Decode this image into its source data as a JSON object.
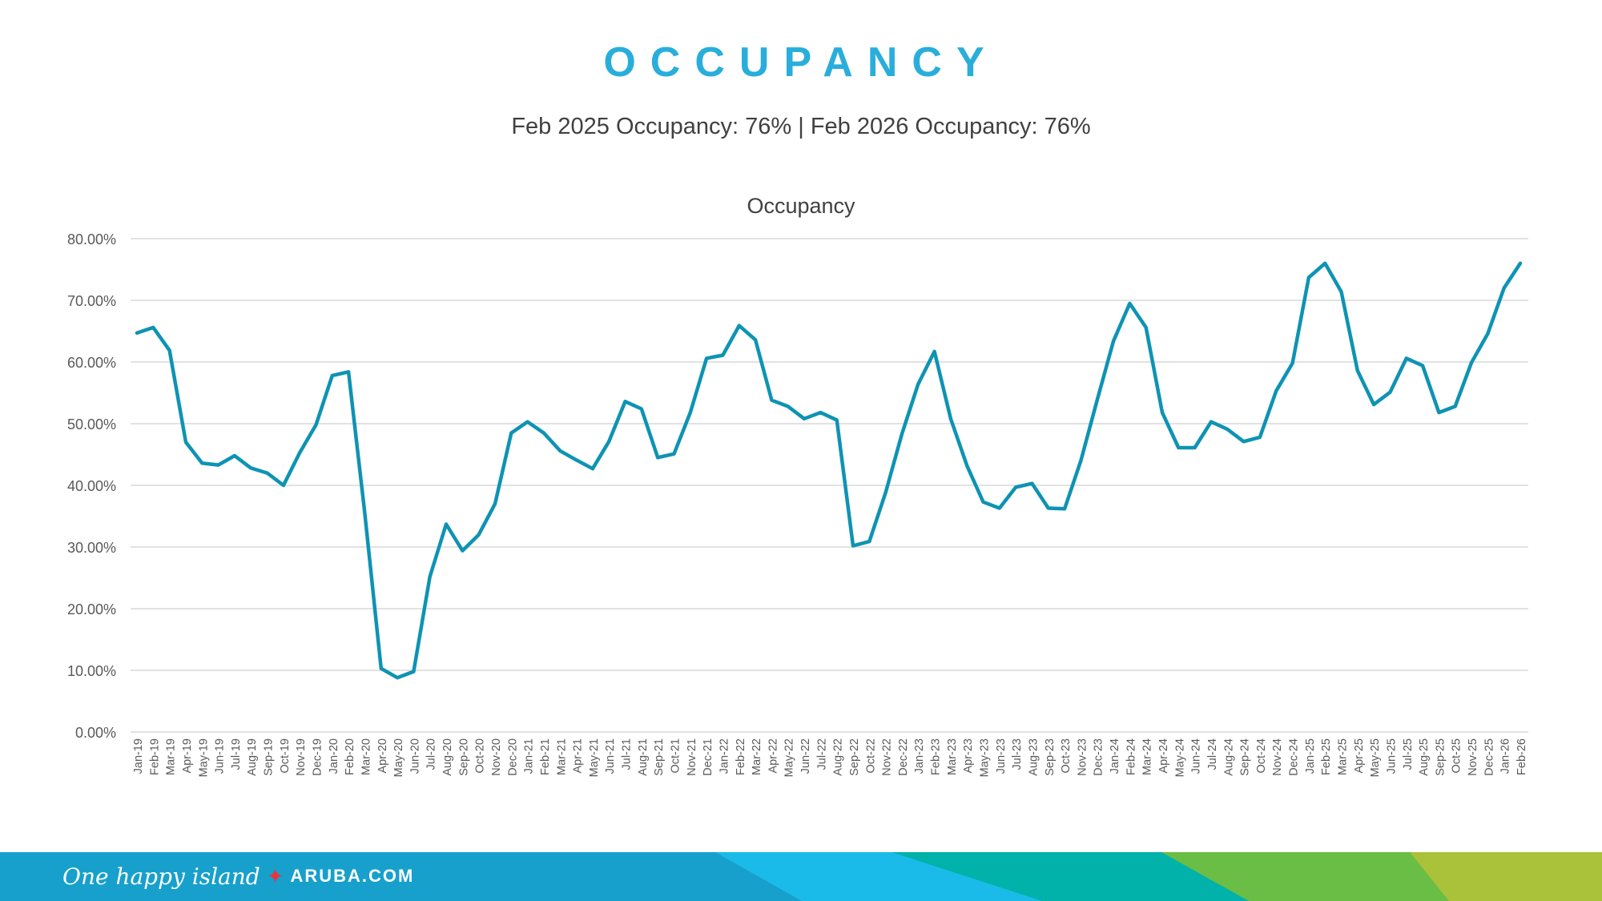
{
  "header": {
    "title": "OCCUPANCY",
    "subtitle": "Feb 2025 Occupancy: 76% | Feb 2026 Occupancy: 76%"
  },
  "footer": {
    "logo_script": "One happy island",
    "logo_site": "ARUBA.COM",
    "colors": [
      "#17a0cc",
      "#1abbe9",
      "#00b2aa",
      "#6abd45",
      "#a9c23a"
    ]
  },
  "chart_data": {
    "type": "line",
    "title": "Occupancy",
    "xlabel": "",
    "ylabel": "",
    "ylim": [
      0,
      80
    ],
    "yticks": [
      "0.00%",
      "10.00%",
      "20.00%",
      "30.00%",
      "40.00%",
      "50.00%",
      "60.00%",
      "70.00%",
      "80.00%"
    ],
    "grid": true,
    "line_color": "#0e93b3",
    "categories": [
      "Jan-19",
      "Feb-19",
      "Mar-19",
      "Apr-19",
      "May-19",
      "Jun-19",
      "Jul-19",
      "Aug-19",
      "Sep-19",
      "Oct-19",
      "Nov-19",
      "Dec-19",
      "Jan-20",
      "Feb-20",
      "Mar-20",
      "Apr-20",
      "May-20",
      "Jun-20",
      "Jul-20",
      "Aug-20",
      "Sep-20",
      "Oct-20",
      "Nov-20",
      "Dec-20",
      "Jan-21",
      "Feb-21",
      "Mar-21",
      "Apr-21",
      "May-21",
      "Jun-21",
      "Jul-21",
      "Aug-21",
      "Sep-21",
      "Oct-21",
      "Nov-21",
      "Dec-21",
      "Jan-22",
      "Feb-22",
      "Mar-22",
      "Apr-22",
      "May-22",
      "Jun-22",
      "Jul-22",
      "Aug-22",
      "Sep-22",
      "Oct-22",
      "Nov-22",
      "Dec-22",
      "Jan-23",
      "Feb-23",
      "Mar-23",
      "Apr-23",
      "May-23",
      "Jun-23",
      "Jul-23",
      "Aug-23",
      "Sep-23",
      "Oct-23",
      "Nov-23",
      "Dec-23",
      "Jan-24",
      "Feb-24",
      "Mar-24",
      "Apr-24",
      "May-24",
      "Jun-24",
      "Jul-24",
      "Aug-24",
      "Sep-24",
      "Oct-24",
      "Nov-24",
      "Dec-24",
      "Jan-25",
      "Feb-25",
      "Mar-25",
      "Apr-25",
      "May-25",
      "Jun-25",
      "Jul-25",
      "Aug-25",
      "Sep-25",
      "Oct-25",
      "Nov-25",
      "Dec-25",
      "Jan-26",
      "Feb-26"
    ],
    "series": [
      {
        "name": "Occupancy",
        "values": [
          64.7,
          65.6,
          61.9,
          47.0,
          43.6,
          43.3,
          44.8,
          42.8,
          42.0,
          40.0,
          45.3,
          49.8,
          57.8,
          58.4,
          35.5,
          10.3,
          8.8,
          9.8,
          25.2,
          33.7,
          29.4,
          32.0,
          37.0,
          48.5,
          50.3,
          48.5,
          45.6,
          44.1,
          42.7,
          47.1,
          53.6,
          52.4,
          44.5,
          45.1,
          51.8,
          60.6,
          61.1,
          65.9,
          63.6,
          53.8,
          52.8,
          50.8,
          51.8,
          50.6,
          30.2,
          30.9,
          38.8,
          48.3,
          56.4,
          61.7,
          50.8,
          43.2,
          37.3,
          36.3,
          39.7,
          40.3,
          36.3,
          36.2,
          44.0,
          53.8,
          63.4,
          69.5,
          65.6,
          51.8,
          46.1,
          46.1,
          50.3,
          49.1,
          47.1,
          47.8,
          55.3,
          59.8,
          73.7,
          76.0,
          71.4,
          58.6,
          53.1,
          55.1,
          60.6,
          59.4,
          51.8,
          52.8,
          59.9,
          64.6,
          72.0,
          76.0
        ]
      }
    ]
  }
}
